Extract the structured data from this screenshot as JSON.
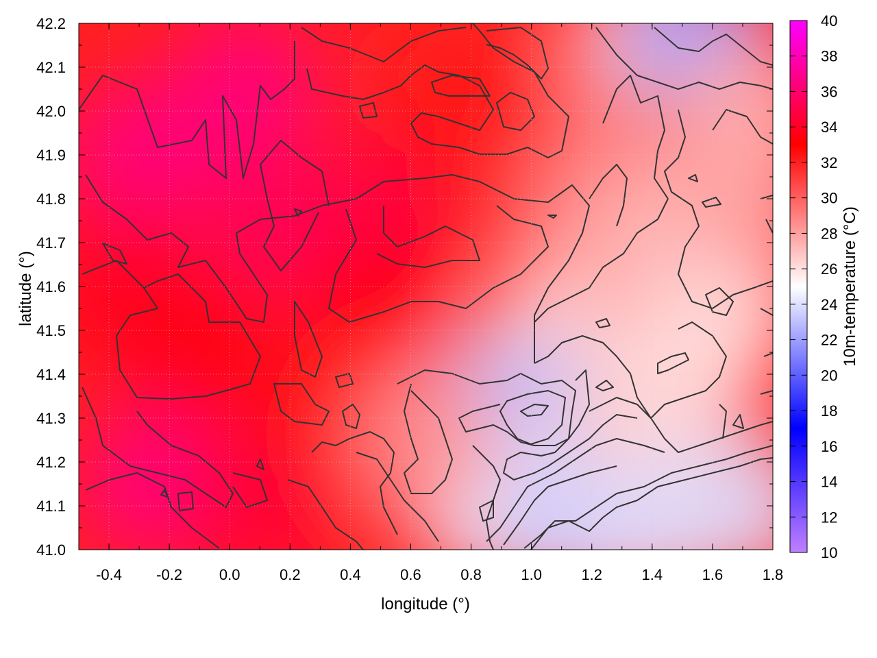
{
  "chart_data": {
    "type": "heatmap",
    "title": "",
    "xlabel": "longitude (°)",
    "ylabel": "latitude (°)",
    "colorbar_label": "10m-temperature (°C)",
    "xlim": [
      -0.5,
      1.8
    ],
    "ylim": [
      41.0,
      42.2
    ],
    "x_ticks": [
      "-0.4",
      "-0.2",
      "0.0",
      "0.2",
      "0.4",
      "0.6",
      "0.8",
      "1.0",
      "1.2",
      "1.4",
      "1.6",
      "1.8"
    ],
    "x_tick_values": [
      -0.4,
      -0.2,
      0.0,
      0.2,
      0.4,
      0.6,
      0.8,
      1.0,
      1.2,
      1.4,
      1.6,
      1.8
    ],
    "y_ticks": [
      "41.0",
      "41.1",
      "41.2",
      "41.3",
      "41.4",
      "41.5",
      "41.6",
      "41.7",
      "41.8",
      "41.9",
      "42.0",
      "42.1",
      "42.2"
    ],
    "y_tick_values": [
      41.0,
      41.1,
      41.2,
      41.3,
      41.4,
      41.5,
      41.6,
      41.7,
      41.8,
      41.9,
      42.0,
      42.1,
      42.2
    ],
    "colorbar_range": [
      10,
      40
    ],
    "colorbar_ticks": [
      "10",
      "12",
      "14",
      "16",
      "18",
      "20",
      "22",
      "24",
      "26",
      "28",
      "30",
      "32",
      "34",
      "36",
      "38",
      "40"
    ],
    "colorbar_tick_values": [
      10,
      12,
      14,
      16,
      18,
      20,
      22,
      24,
      26,
      28,
      30,
      32,
      34,
      36,
      38,
      40
    ],
    "colormap": [
      {
        "value": 10,
        "color": "#c080ff"
      },
      {
        "value": 17,
        "color": "#0000ff"
      },
      {
        "value": 25,
        "color": "#ffffff"
      },
      {
        "value": 33,
        "color": "#ff0000"
      },
      {
        "value": 40,
        "color": "#ff00ff"
      }
    ],
    "contour_color": "#333333",
    "grid": true,
    "field_samples": [
      {
        "lon": -0.3,
        "lat": 41.9,
        "value": 36.5
      },
      {
        "lon": -0.35,
        "lat": 41.6,
        "value": 34.0
      },
      {
        "lon": -0.1,
        "lat": 41.45,
        "value": 33.5
      },
      {
        "lon": -0.25,
        "lat": 41.15,
        "value": 36.5
      },
      {
        "lon": 0.1,
        "lat": 41.1,
        "value": 34.5
      },
      {
        "lon": 0.05,
        "lat": 42.05,
        "value": 36.5
      },
      {
        "lon": 0.15,
        "lat": 41.75,
        "value": 35.5
      },
      {
        "lon": 0.5,
        "lat": 41.75,
        "value": 35.0
      },
      {
        "lon": 0.5,
        "lat": 41.55,
        "value": 33.5
      },
      {
        "lon": 0.4,
        "lat": 41.3,
        "value": 32.5
      },
      {
        "lon": 0.75,
        "lat": 42.05,
        "value": 32.0
      },
      {
        "lon": 0.85,
        "lat": 41.9,
        "value": 33.0
      },
      {
        "lon": 1.0,
        "lat": 41.85,
        "value": 31.5
      },
      {
        "lon": 1.35,
        "lat": 42.15,
        "value": 27.0
      },
      {
        "lon": 1.55,
        "lat": 42.17,
        "value": 22.0
      },
      {
        "lon": 1.25,
        "lat": 41.8,
        "value": 28.5
      },
      {
        "lon": 1.5,
        "lat": 41.75,
        "value": 27.0
      },
      {
        "lon": 1.65,
        "lat": 41.55,
        "value": 26.0
      },
      {
        "lon": 1.15,
        "lat": 41.55,
        "value": 27.5
      },
      {
        "lon": 1.05,
        "lat": 41.45,
        "value": 26.5
      },
      {
        "lon": 1.0,
        "lat": 41.3,
        "value": 22.5
      },
      {
        "lon": 0.85,
        "lat": 41.3,
        "value": 23.0
      },
      {
        "lon": 0.85,
        "lat": 41.1,
        "value": 24.5
      },
      {
        "lon": 0.65,
        "lat": 41.25,
        "value": 28.5
      },
      {
        "lon": 1.3,
        "lat": 41.25,
        "value": 26.5
      },
      {
        "lon": 1.5,
        "lat": 41.4,
        "value": 26.0
      },
      {
        "lon": 1.1,
        "lat": 41.05,
        "value": 23.5
      },
      {
        "lon": 1.4,
        "lat": 41.05,
        "value": 24.0
      },
      {
        "lon": 1.7,
        "lat": 41.1,
        "value": 24.0
      },
      {
        "lon": 1.7,
        "lat": 41.8,
        "value": 28.0
      },
      {
        "lon": 1.72,
        "lat": 42.0,
        "value": 27.5
      }
    ]
  }
}
